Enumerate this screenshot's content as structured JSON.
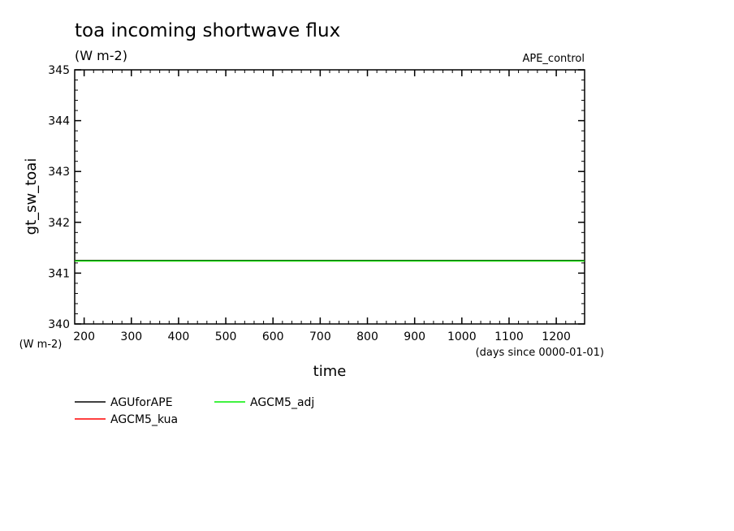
{
  "chart_data": {
    "type": "line",
    "title": "toa incoming shortwave flux",
    "units": "(W m-2)",
    "experiment": "APE_control",
    "ylabel": "gt_sw_toai",
    "yunits": "(W m-2)",
    "xlabel": "time",
    "xunits": "(days since 0000-01-01)",
    "xlim": [
      180,
      1260
    ],
    "ylim": [
      340,
      345
    ],
    "xticks": [
      200,
      300,
      400,
      500,
      600,
      700,
      800,
      900,
      1000,
      1100,
      1200
    ],
    "yticks": [
      340,
      341,
      342,
      343,
      344,
      345
    ],
    "x": [
      180,
      1260
    ],
    "series": [
      {
        "name": "AGUforAPE",
        "color": "#000000",
        "values": [
          341.25,
          341.25
        ]
      },
      {
        "name": "AGCM5_kua",
        "color": "#ff0000",
        "values": [
          341.24,
          341.24
        ]
      },
      {
        "name": "AGCM5_adj",
        "color": "#00ee00",
        "values": [
          341.24,
          341.24
        ]
      }
    ]
  }
}
